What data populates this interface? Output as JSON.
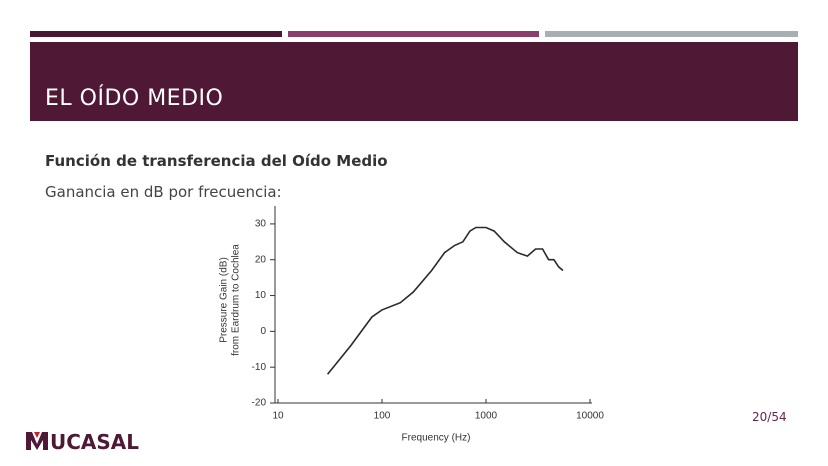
{
  "slide": {
    "title": "EL OÍDO MEDIO",
    "subtitle": "Función de transferencia del Oído Medio",
    "text": "Ganancia en dB por frecuencia:",
    "page": "20/54",
    "logo": "UCASAL"
  },
  "chart_data": {
    "type": "line",
    "xlabel": "Frequency (Hz)",
    "ylabel": [
      "Pressure Gain (dB)",
      "from Eardrum to Cochlea"
    ],
    "xscale": "log",
    "xlim": [
      10,
      10000
    ],
    "xticks": [
      10,
      100,
      1000,
      10000
    ],
    "ylim": [
      -20,
      35
    ],
    "yticks": [
      -20,
      -10,
      0,
      10,
      20,
      30
    ],
    "color": "#2a2a2a",
    "x": [
      30,
      50,
      80,
      100,
      150,
      200,
      300,
      400,
      500,
      600,
      700,
      800,
      1000,
      1200,
      1500,
      2000,
      2500,
      3000,
      3500,
      4000,
      4500,
      5000,
      5500
    ],
    "values": [
      -12,
      -4,
      4,
      6,
      8,
      11,
      17,
      22,
      24,
      25,
      28,
      29,
      29,
      28,
      25,
      22,
      21,
      23,
      23,
      20,
      20,
      18,
      17
    ]
  }
}
